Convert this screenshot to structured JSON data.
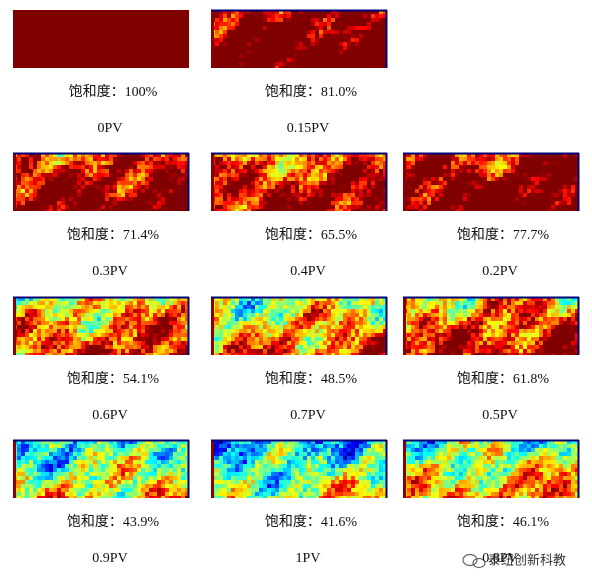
{
  "panels": [
    {
      "saturation": "饱和度：100%",
      "pv": "0PV"
    },
    {
      "saturation": "饱和度：81.0%",
      "pv": "0.15PV"
    },
    {
      "saturation": "饱和度：77.7%",
      "pv": "0.2PV"
    },
    {
      "saturation": "饱和度：71.4%",
      "pv": "0.3PV"
    },
    {
      "saturation": "饱和度：65.5%",
      "pv": "0.4PV"
    },
    {
      "saturation": "饱和度：61.8%",
      "pv": "0.5PV"
    },
    {
      "saturation": "饱和度：54.1%",
      "pv": "0.6PV"
    },
    {
      "saturation": "饱和度：48.5%",
      "pv": "0.7PV"
    },
    {
      "saturation": "饱和度：46.1%",
      "pv": "0.8PV"
    },
    {
      "saturation": "饱和度：43.9%",
      "pv": "0.9PV"
    },
    {
      "saturation": "饱和度：41.6%",
      "pv": "1PV"
    }
  ],
  "watermark": "泰纽创新科教"
}
